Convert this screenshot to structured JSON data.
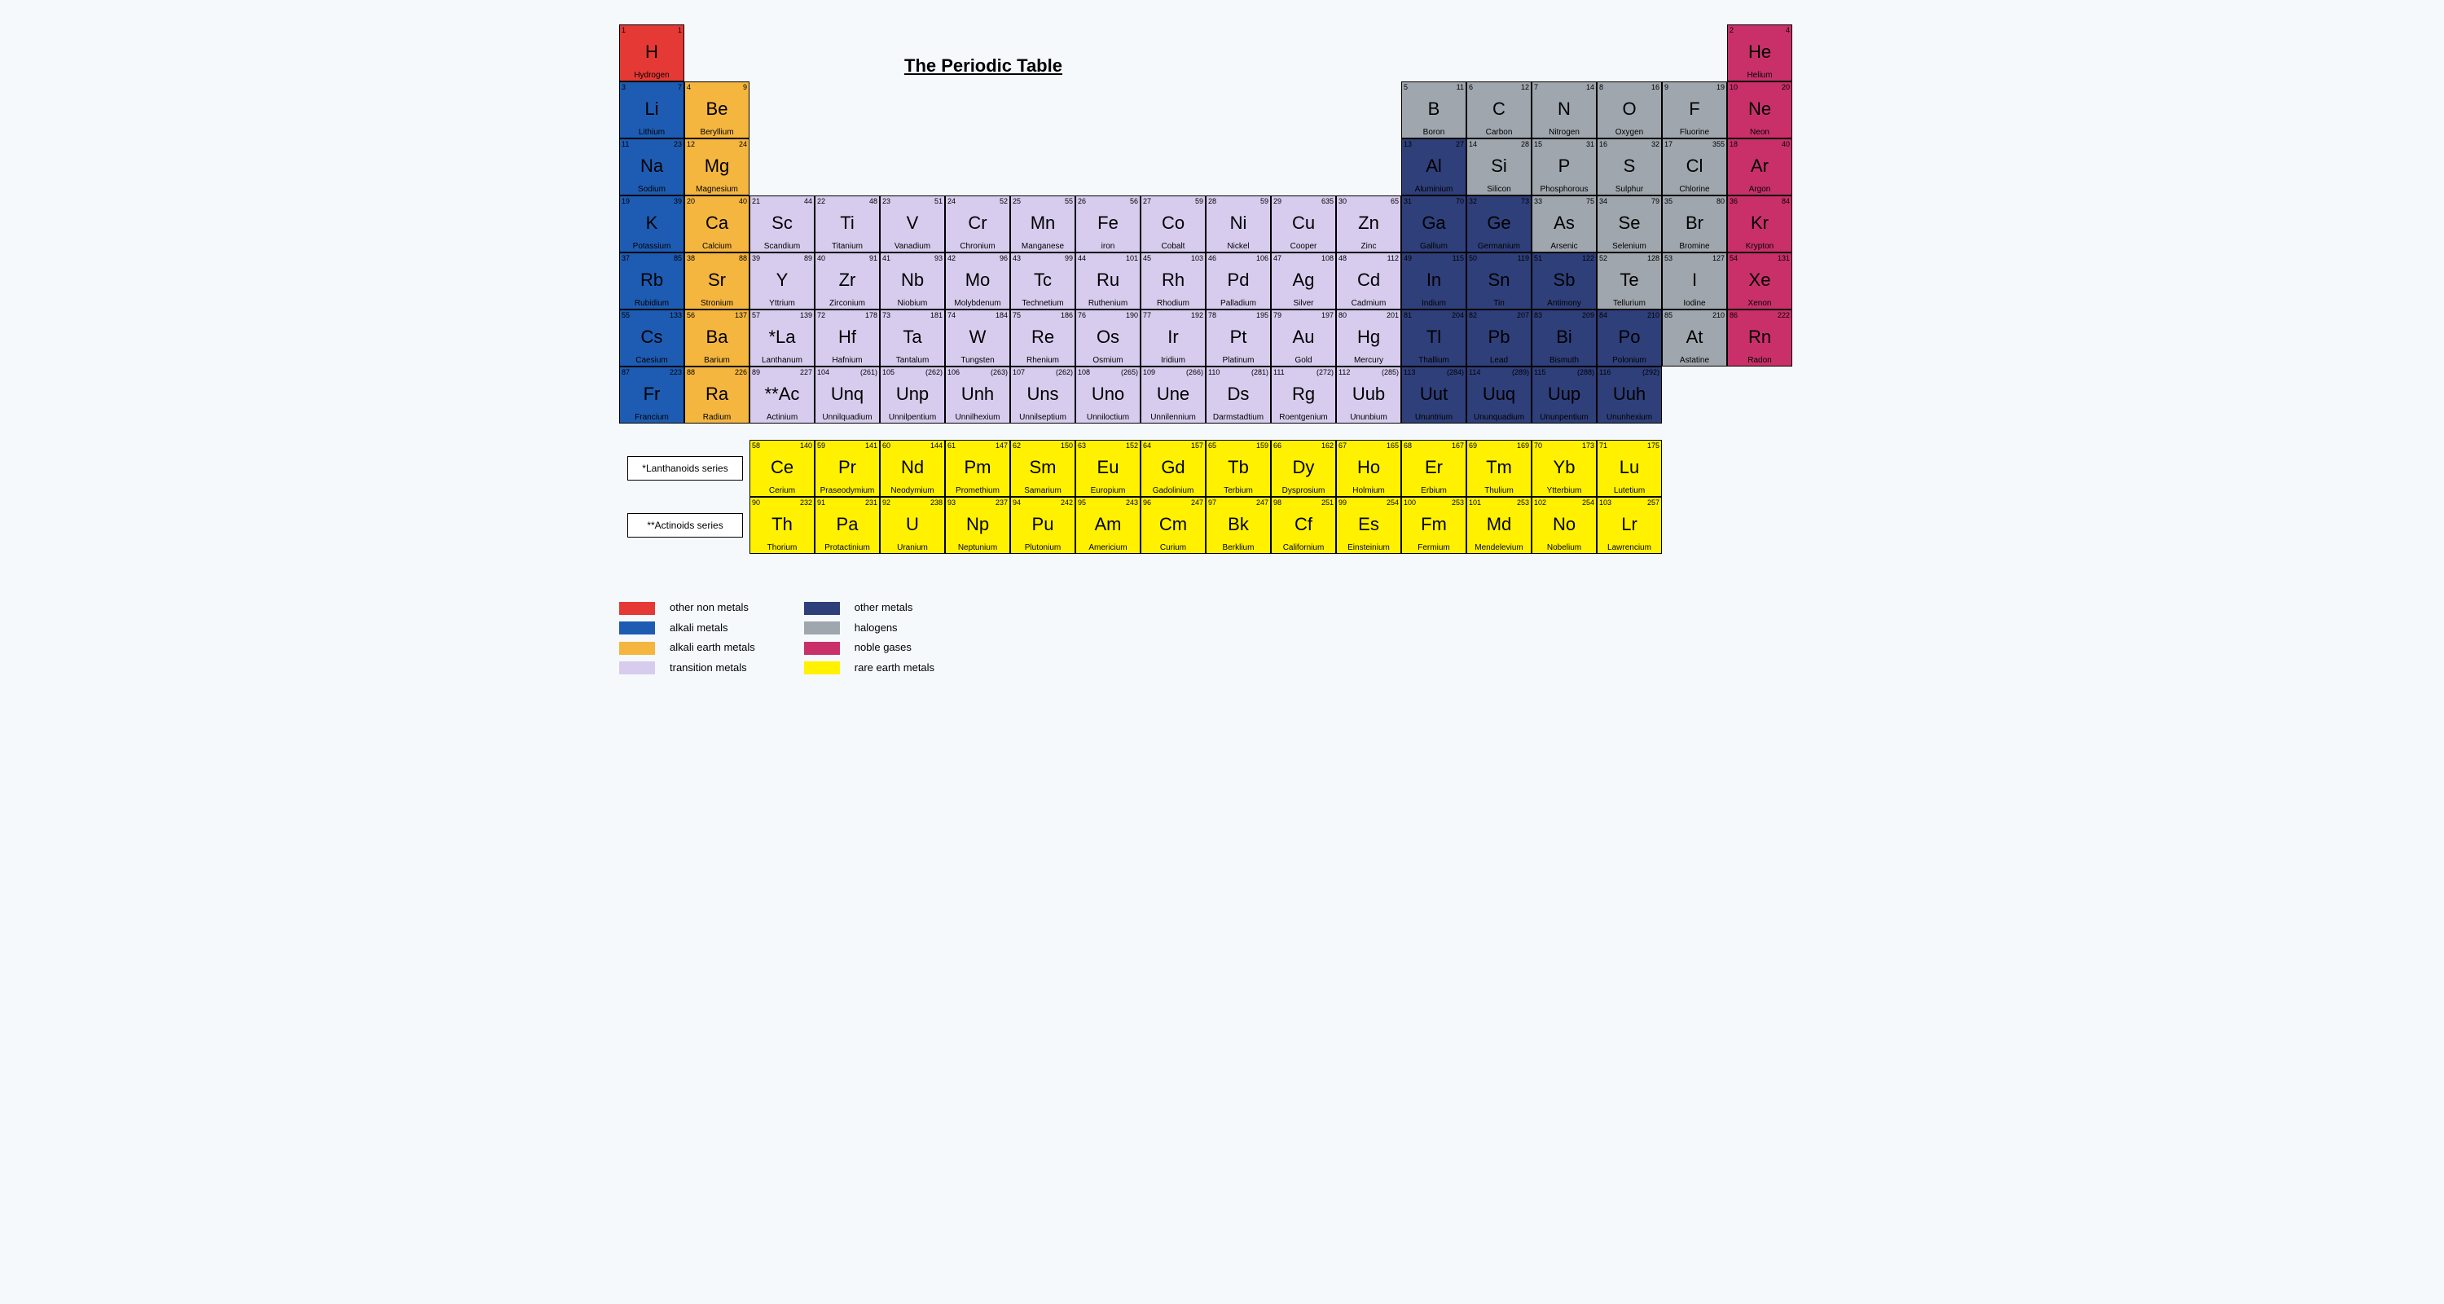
{
  "title": "The Periodic Table",
  "cell": {
    "w": 80,
    "h": 70
  },
  "mainTop": 10,
  "seriesTop": 520,
  "seriesGap": 10,
  "colors": {
    "other_nonmetals": "#e53935",
    "alkali_metals": "#1e5cb3",
    "alkali_earth": "#f4b63f",
    "transition": "#d7ccee",
    "other_metals": "#2f3f7a",
    "halogens": "#9fa6ad",
    "noble_gases": "#c9306a",
    "rare_earth": "#fff100",
    "background": "#f5f9fc",
    "border": "#000000"
  },
  "categoryTextDark": [
    "other_nonmetals",
    "alkali_earth",
    "transition",
    "halogens",
    "rare_earth"
  ],
  "legend": [
    {
      "key": "other_nonmetals",
      "label": "other non metals"
    },
    {
      "key": "alkali_metals",
      "label": "alkali metals"
    },
    {
      "key": "alkali_earth",
      "label": "alkali earth metals"
    },
    {
      "key": "transition",
      "label": "transition metals"
    },
    {
      "key": "other_metals",
      "label": "other metals"
    },
    {
      "key": "halogens",
      "label": "halogens"
    },
    {
      "key": "noble_gases",
      "label": "noble gases"
    },
    {
      "key": "rare_earth",
      "label": "rare earth metals"
    }
  ],
  "seriesLabels": {
    "lanth": "*Lanthanoids series",
    "act": "**Actinoids series"
  },
  "elements": [
    {
      "n": 1,
      "m": "1",
      "s": "H",
      "name": "Hydrogen",
      "r": 0,
      "c": 0,
      "cat": "other_nonmetals"
    },
    {
      "n": 2,
      "m": "4",
      "s": "He",
      "name": "Helium",
      "r": 0,
      "c": 17,
      "cat": "noble_gases"
    },
    {
      "n": 3,
      "m": "7",
      "s": "Li",
      "name": "Lithium",
      "r": 1,
      "c": 0,
      "cat": "alkali_metals"
    },
    {
      "n": 4,
      "m": "9",
      "s": "Be",
      "name": "Beryllium",
      "r": 1,
      "c": 1,
      "cat": "alkali_earth"
    },
    {
      "n": 5,
      "m": "11",
      "s": "B",
      "name": "Boron",
      "r": 1,
      "c": 12,
      "cat": "halogens"
    },
    {
      "n": 6,
      "m": "12",
      "s": "C",
      "name": "Carbon",
      "r": 1,
      "c": 13,
      "cat": "halogens"
    },
    {
      "n": 7,
      "m": "14",
      "s": "N",
      "name": "Nitrogen",
      "r": 1,
      "c": 14,
      "cat": "halogens"
    },
    {
      "n": 8,
      "m": "16",
      "s": "O",
      "name": "Oxygen",
      "r": 1,
      "c": 15,
      "cat": "halogens"
    },
    {
      "n": 9,
      "m": "19",
      "s": "F",
      "name": "Fluorine",
      "r": 1,
      "c": 16,
      "cat": "halogens"
    },
    {
      "n": 10,
      "m": "20",
      "s": "Ne",
      "name": "Neon",
      "r": 1,
      "c": 17,
      "cat": "noble_gases"
    },
    {
      "n": 11,
      "m": "23",
      "s": "Na",
      "name": "Sodium",
      "r": 2,
      "c": 0,
      "cat": "alkali_metals"
    },
    {
      "n": 12,
      "m": "24",
      "s": "Mg",
      "name": "Magnesium",
      "r": 2,
      "c": 1,
      "cat": "alkali_earth"
    },
    {
      "n": 13,
      "m": "27",
      "s": "Al",
      "name": "Aluminium",
      "r": 2,
      "c": 12,
      "cat": "other_metals"
    },
    {
      "n": 14,
      "m": "28",
      "s": "Si",
      "name": "Silicon",
      "r": 2,
      "c": 13,
      "cat": "halogens"
    },
    {
      "n": 15,
      "m": "31",
      "s": "P",
      "name": "Phosphorous",
      "r": 2,
      "c": 14,
      "cat": "halogens"
    },
    {
      "n": 16,
      "m": "32",
      "s": "S",
      "name": "Sulphur",
      "r": 2,
      "c": 15,
      "cat": "halogens"
    },
    {
      "n": 17,
      "m": "355",
      "s": "Cl",
      "name": "Chlorine",
      "r": 2,
      "c": 16,
      "cat": "halogens"
    },
    {
      "n": 18,
      "m": "40",
      "s": "Ar",
      "name": "Argon",
      "r": 2,
      "c": 17,
      "cat": "noble_gases"
    },
    {
      "n": 19,
      "m": "39",
      "s": "K",
      "name": "Potassium",
      "r": 3,
      "c": 0,
      "cat": "alkali_metals"
    },
    {
      "n": 20,
      "m": "40",
      "s": "Ca",
      "name": "Calcium",
      "r": 3,
      "c": 1,
      "cat": "alkali_earth"
    },
    {
      "n": 21,
      "m": "44",
      "s": "Sc",
      "name": "Scandium",
      "r": 3,
      "c": 2,
      "cat": "transition"
    },
    {
      "n": 22,
      "m": "48",
      "s": "Ti",
      "name": "Titanium",
      "r": 3,
      "c": 3,
      "cat": "transition"
    },
    {
      "n": 23,
      "m": "51",
      "s": "V",
      "name": "Vanadium",
      "r": 3,
      "c": 4,
      "cat": "transition"
    },
    {
      "n": 24,
      "m": "52",
      "s": "Cr",
      "name": "Chronium",
      "r": 3,
      "c": 5,
      "cat": "transition"
    },
    {
      "n": 25,
      "m": "55",
      "s": "Mn",
      "name": "Manganese",
      "r": 3,
      "c": 6,
      "cat": "transition"
    },
    {
      "n": 26,
      "m": "56",
      "s": "Fe",
      "name": "iron",
      "r": 3,
      "c": 7,
      "cat": "transition"
    },
    {
      "n": 27,
      "m": "59",
      "s": "Co",
      "name": "Cobalt",
      "r": 3,
      "c": 8,
      "cat": "transition"
    },
    {
      "n": 28,
      "m": "59",
      "s": "Ni",
      "name": "Nickel",
      "r": 3,
      "c": 9,
      "cat": "transition"
    },
    {
      "n": 29,
      "m": "635",
      "s": "Cu",
      "name": "Cooper",
      "r": 3,
      "c": 10,
      "cat": "transition"
    },
    {
      "n": 30,
      "m": "65",
      "s": "Zn",
      "name": "Zinc",
      "r": 3,
      "c": 11,
      "cat": "transition"
    },
    {
      "n": 31,
      "m": "70",
      "s": "Ga",
      "name": "Gallium",
      "r": 3,
      "c": 12,
      "cat": "other_metals"
    },
    {
      "n": 32,
      "m": "73",
      "s": "Ge",
      "name": "Germanium",
      "r": 3,
      "c": 13,
      "cat": "other_metals"
    },
    {
      "n": 33,
      "m": "75",
      "s": "As",
      "name": "Arsenic",
      "r": 3,
      "c": 14,
      "cat": "halogens"
    },
    {
      "n": 34,
      "m": "79",
      "s": "Se",
      "name": "Selenium",
      "r": 3,
      "c": 15,
      "cat": "halogens"
    },
    {
      "n": 35,
      "m": "80",
      "s": "Br",
      "name": "Bromine",
      "r": 3,
      "c": 16,
      "cat": "halogens"
    },
    {
      "n": 36,
      "m": "84",
      "s": "Kr",
      "name": "Krypton",
      "r": 3,
      "c": 17,
      "cat": "noble_gases"
    },
    {
      "n": 37,
      "m": "85",
      "s": "Rb",
      "name": "Rubidium",
      "r": 4,
      "c": 0,
      "cat": "alkali_metals"
    },
    {
      "n": 38,
      "m": "88",
      "s": "Sr",
      "name": "Stronium",
      "r": 4,
      "c": 1,
      "cat": "alkali_earth"
    },
    {
      "n": 39,
      "m": "89",
      "s": "Y",
      "name": "Yttrium",
      "r": 4,
      "c": 2,
      "cat": "transition"
    },
    {
      "n": 40,
      "m": "91",
      "s": "Zr",
      "name": "Zirconium",
      "r": 4,
      "c": 3,
      "cat": "transition"
    },
    {
      "n": 41,
      "m": "93",
      "s": "Nb",
      "name": "Niobium",
      "r": 4,
      "c": 4,
      "cat": "transition"
    },
    {
      "n": 42,
      "m": "96",
      "s": "Mo",
      "name": "Molybdenum",
      "r": 4,
      "c": 5,
      "cat": "transition"
    },
    {
      "n": 43,
      "m": "99",
      "s": "Tc",
      "name": "Technetium",
      "r": 4,
      "c": 6,
      "cat": "transition"
    },
    {
      "n": 44,
      "m": "101",
      "s": "Ru",
      "name": "Ruthenium",
      "r": 4,
      "c": 7,
      "cat": "transition"
    },
    {
      "n": 45,
      "m": "103",
      "s": "Rh",
      "name": "Rhodium",
      "r": 4,
      "c": 8,
      "cat": "transition"
    },
    {
      "n": 46,
      "m": "106",
      "s": "Pd",
      "name": "Palladium",
      "r": 4,
      "c": 9,
      "cat": "transition"
    },
    {
      "n": 47,
      "m": "108",
      "s": "Ag",
      "name": "Silver",
      "r": 4,
      "c": 10,
      "cat": "transition"
    },
    {
      "n": 48,
      "m": "112",
      "s": "Cd",
      "name": "Cadmium",
      "r": 4,
      "c": 11,
      "cat": "transition"
    },
    {
      "n": 49,
      "m": "115",
      "s": "In",
      "name": "Indium",
      "r": 4,
      "c": 12,
      "cat": "other_metals"
    },
    {
      "n": 50,
      "m": "119",
      "s": "Sn",
      "name": "Tin",
      "r": 4,
      "c": 13,
      "cat": "other_metals"
    },
    {
      "n": 51,
      "m": "122",
      "s": "Sb",
      "name": "Antimony",
      "r": 4,
      "c": 14,
      "cat": "other_metals"
    },
    {
      "n": 52,
      "m": "128",
      "s": "Te",
      "name": "Tellurium",
      "r": 4,
      "c": 15,
      "cat": "halogens"
    },
    {
      "n": 53,
      "m": "127",
      "s": "I",
      "name": "Iodine",
      "r": 4,
      "c": 16,
      "cat": "halogens"
    },
    {
      "n": 54,
      "m": "131",
      "s": "Xe",
      "name": "Xenon",
      "r": 4,
      "c": 17,
      "cat": "noble_gases"
    },
    {
      "n": 55,
      "m": "133",
      "s": "Cs",
      "name": "Caesium",
      "r": 5,
      "c": 0,
      "cat": "alkali_metals"
    },
    {
      "n": 56,
      "m": "137",
      "s": "Ba",
      "name": "Barium",
      "r": 5,
      "c": 1,
      "cat": "alkali_earth"
    },
    {
      "n": 57,
      "m": "139",
      "s": "*La",
      "name": "Lanthanum",
      "r": 5,
      "c": 2,
      "cat": "transition"
    },
    {
      "n": 72,
      "m": "178",
      "s": "Hf",
      "name": "Hafnium",
      "r": 5,
      "c": 3,
      "cat": "transition"
    },
    {
      "n": 73,
      "m": "181",
      "s": "Ta",
      "name": "Tantalum",
      "r": 5,
      "c": 4,
      "cat": "transition"
    },
    {
      "n": 74,
      "m": "184",
      "s": "W",
      "name": "Tungsten",
      "r": 5,
      "c": 5,
      "cat": "transition"
    },
    {
      "n": 75,
      "m": "186",
      "s": "Re",
      "name": "Rhenium",
      "r": 5,
      "c": 6,
      "cat": "transition"
    },
    {
      "n": 76,
      "m": "190",
      "s": "Os",
      "name": "Osmium",
      "r": 5,
      "c": 7,
      "cat": "transition"
    },
    {
      "n": 77,
      "m": "192",
      "s": "Ir",
      "name": "Iridium",
      "r": 5,
      "c": 8,
      "cat": "transition"
    },
    {
      "n": 78,
      "m": "195",
      "s": "Pt",
      "name": "Platinum",
      "r": 5,
      "c": 9,
      "cat": "transition"
    },
    {
      "n": 79,
      "m": "197",
      "s": "Au",
      "name": "Gold",
      "r": 5,
      "c": 10,
      "cat": "transition"
    },
    {
      "n": 80,
      "m": "201",
      "s": "Hg",
      "name": "Mercury",
      "r": 5,
      "c": 11,
      "cat": "transition"
    },
    {
      "n": 81,
      "m": "204",
      "s": "Tl",
      "name": "Thallium",
      "r": 5,
      "c": 12,
      "cat": "other_metals"
    },
    {
      "n": 82,
      "m": "207",
      "s": "Pb",
      "name": "Lead",
      "r": 5,
      "c": 13,
      "cat": "other_metals"
    },
    {
      "n": 83,
      "m": "209",
      "s": "Bi",
      "name": "Bismuth",
      "r": 5,
      "c": 14,
      "cat": "other_metals"
    },
    {
      "n": 84,
      "m": "210",
      "s": "Po",
      "name": "Polonium",
      "r": 5,
      "c": 15,
      "cat": "other_metals"
    },
    {
      "n": 85,
      "m": "210",
      "s": "At",
      "name": "Astatine",
      "r": 5,
      "c": 16,
      "cat": "halogens"
    },
    {
      "n": 86,
      "m": "222",
      "s": "Rn",
      "name": "Radon",
      "r": 5,
      "c": 17,
      "cat": "noble_gases"
    },
    {
      "n": 87,
      "m": "223",
      "s": "Fr",
      "name": "Francium",
      "r": 6,
      "c": 0,
      "cat": "alkali_metals"
    },
    {
      "n": 88,
      "m": "226",
      "s": "Ra",
      "name": "Radium",
      "r": 6,
      "c": 1,
      "cat": "alkali_earth"
    },
    {
      "n": 89,
      "m": "227",
      "s": "**Ac",
      "name": "Actinium",
      "r": 6,
      "c": 2,
      "cat": "transition"
    },
    {
      "n": 104,
      "m": "(261)",
      "s": "Unq",
      "name": "Unnilquadium",
      "r": 6,
      "c": 3,
      "cat": "transition"
    },
    {
      "n": 105,
      "m": "(262)",
      "s": "Unp",
      "name": "Unnilpentium",
      "r": 6,
      "c": 4,
      "cat": "transition"
    },
    {
      "n": 106,
      "m": "(263)",
      "s": "Unh",
      "name": "Unnilhexium",
      "r": 6,
      "c": 5,
      "cat": "transition"
    },
    {
      "n": 107,
      "m": "(262)",
      "s": "Uns",
      "name": "Unnilseptium",
      "r": 6,
      "c": 6,
      "cat": "transition"
    },
    {
      "n": 108,
      "m": "(265)",
      "s": "Uno",
      "name": "Unniloctium",
      "r": 6,
      "c": 7,
      "cat": "transition"
    },
    {
      "n": 109,
      "m": "(266)",
      "s": "Une",
      "name": "Unnilennium",
      "r": 6,
      "c": 8,
      "cat": "transition"
    },
    {
      "n": 110,
      "m": "(281)",
      "s": "Ds",
      "name": "Darmstadtium",
      "r": 6,
      "c": 9,
      "cat": "transition"
    },
    {
      "n": 111,
      "m": "(272)",
      "s": "Rg",
      "name": "Roentgenium",
      "r": 6,
      "c": 10,
      "cat": "transition"
    },
    {
      "n": 112,
      "m": "(285)",
      "s": "Uub",
      "name": "Ununbium",
      "r": 6,
      "c": 11,
      "cat": "transition"
    },
    {
      "n": 113,
      "m": "(284)",
      "s": "Uut",
      "name": "Ununtrium",
      "r": 6,
      "c": 12,
      "cat": "other_metals"
    },
    {
      "n": 114,
      "m": "(289)",
      "s": "Uuq",
      "name": "Ununquadium",
      "r": 6,
      "c": 13,
      "cat": "other_metals"
    },
    {
      "n": 115,
      "m": "(288)",
      "s": "Uup",
      "name": "Ununpentium",
      "r": 6,
      "c": 14,
      "cat": "other_metals"
    },
    {
      "n": 116,
      "m": "(292)",
      "s": "Uuh",
      "name": "Ununhexium",
      "r": 6,
      "c": 15,
      "cat": "other_metals"
    }
  ],
  "lanthanoids": [
    {
      "n": 58,
      "m": "140",
      "s": "Ce",
      "name": "Cerium"
    },
    {
      "n": 59,
      "m": "141",
      "s": "Pr",
      "name": "Praseodymium"
    },
    {
      "n": 60,
      "m": "144",
      "s": "Nd",
      "name": "Neodymium"
    },
    {
      "n": 61,
      "m": "147",
      "s": "Pm",
      "name": "Promethium"
    },
    {
      "n": 62,
      "m": "150",
      "s": "Sm",
      "name": "Samarium"
    },
    {
      "n": 63,
      "m": "152",
      "s": "Eu",
      "name": "Europium"
    },
    {
      "n": 64,
      "m": "157",
      "s": "Gd",
      "name": "Gadolinium"
    },
    {
      "n": 65,
      "m": "159",
      "s": "Tb",
      "name": "Terbium"
    },
    {
      "n": 66,
      "m": "162",
      "s": "Dy",
      "name": "Dysprosium"
    },
    {
      "n": 67,
      "m": "165",
      "s": "Ho",
      "name": "Holmium"
    },
    {
      "n": 68,
      "m": "167",
      "s": "Er",
      "name": "Erbium"
    },
    {
      "n": 69,
      "m": "169",
      "s": "Tm",
      "name": "Thulium"
    },
    {
      "n": 70,
      "m": "173",
      "s": "Yb",
      "name": "Ytterbium"
    },
    {
      "n": 71,
      "m": "175",
      "s": "Lu",
      "name": "Lutetium"
    }
  ],
  "actinoids": [
    {
      "n": 90,
      "m": "232",
      "s": "Th",
      "name": "Thorium"
    },
    {
      "n": 91,
      "m": "231",
      "s": "Pa",
      "name": "Protactinium"
    },
    {
      "n": 92,
      "m": "238",
      "s": "U",
      "name": "Uranium"
    },
    {
      "n": 93,
      "m": "237",
      "s": "Np",
      "name": "Neptunium"
    },
    {
      "n": 94,
      "m": "242",
      "s": "Pu",
      "name": "Plutonium"
    },
    {
      "n": 95,
      "m": "243",
      "s": "Am",
      "name": "Americium"
    },
    {
      "n": 96,
      "m": "247",
      "s": "Cm",
      "name": "Curium"
    },
    {
      "n": 97,
      "m": "247",
      "s": "Bk",
      "name": "Berklium"
    },
    {
      "n": 98,
      "m": "251",
      "s": "Cf",
      "name": "Californium"
    },
    {
      "n": 99,
      "m": "254",
      "s": "Es",
      "name": "Einsteinium"
    },
    {
      "n": 100,
      "m": "253",
      "s": "Fm",
      "name": "Fermium"
    },
    {
      "n": 101,
      "m": "253",
      "s": "Md",
      "name": "Mendelevium"
    },
    {
      "n": 102,
      "m": "254",
      "s": "No",
      "name": "Nobelium"
    },
    {
      "n": 103,
      "m": "257",
      "s": "Lr",
      "name": "Lawrencium"
    }
  ]
}
